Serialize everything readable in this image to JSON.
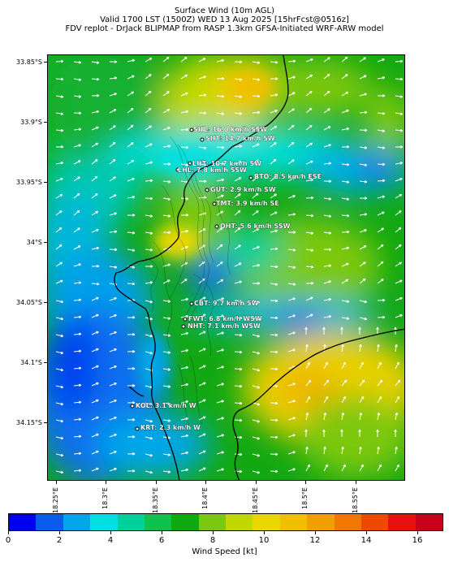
{
  "title": {
    "line1": "Surface Wind (10m AGL)",
    "line2": "Valid 1700 LST (1500Z) WED 13 Aug 2025 [15hrFcst@0516z]",
    "line3": "FDV replot - DrJack BLIPMAP from RASP 1.3km GFSA-Initiated WRF-ARW model"
  },
  "y_axis": {
    "ticks": [
      "33.85°S",
      "33.9°S",
      "33.95°S",
      "34°S",
      "34.05°S",
      "34.1°S",
      "34.15°S"
    ]
  },
  "x_axis": {
    "ticks": [
      "18.25°E",
      "18.3°E",
      "18.35°E",
      "18.4°E",
      "18.45°E",
      "18.5°E",
      "18.55°E"
    ]
  },
  "stations": [
    {
      "label": "SHL: 16.0 km/h SSW"
    },
    {
      "label": "SHT: 14.7 km/h SW"
    },
    {
      "label": "LHT: 10.7 km/h SW"
    },
    {
      "label": "LHL: 7.8 km/h SSW"
    },
    {
      "label": "BTO: 8.5 km/h ESE"
    },
    {
      "label": "GUT: 2.9 km/h SW"
    },
    {
      "label": "TMT: 3.9 km/h SE"
    },
    {
      "label": "OHT: 5.6 km/h SSW"
    },
    {
      "label": "CBT: 9.7 km/h SW"
    },
    {
      "label": "FWT: 6.8 km/h WSW"
    },
    {
      "label": "NHT: 7.1 km/h WSW"
    },
    {
      "label": "KOL: 3.1 km/h W"
    },
    {
      "label": "KRT: 2.3 km/h W"
    }
  ],
  "colorbar": {
    "title": "Wind Speed [kt]",
    "ticks": [
      "0",
      "2",
      "4",
      "6",
      "8",
      "10",
      "12",
      "14",
      "16"
    ],
    "colors": [
      "#0000f0",
      "#0a5cee",
      "#00a6e8",
      "#00e0e0",
      "#00d09a",
      "#0ec24e",
      "#12a812",
      "#7cc810",
      "#c0d800",
      "#e8d800",
      "#f0c000",
      "#f0a000",
      "#f07800",
      "#f04800",
      "#e81010",
      "#c8001a"
    ]
  },
  "accent_colors": {
    "label_text": "#ffffff",
    "coastline": "#000000"
  }
}
